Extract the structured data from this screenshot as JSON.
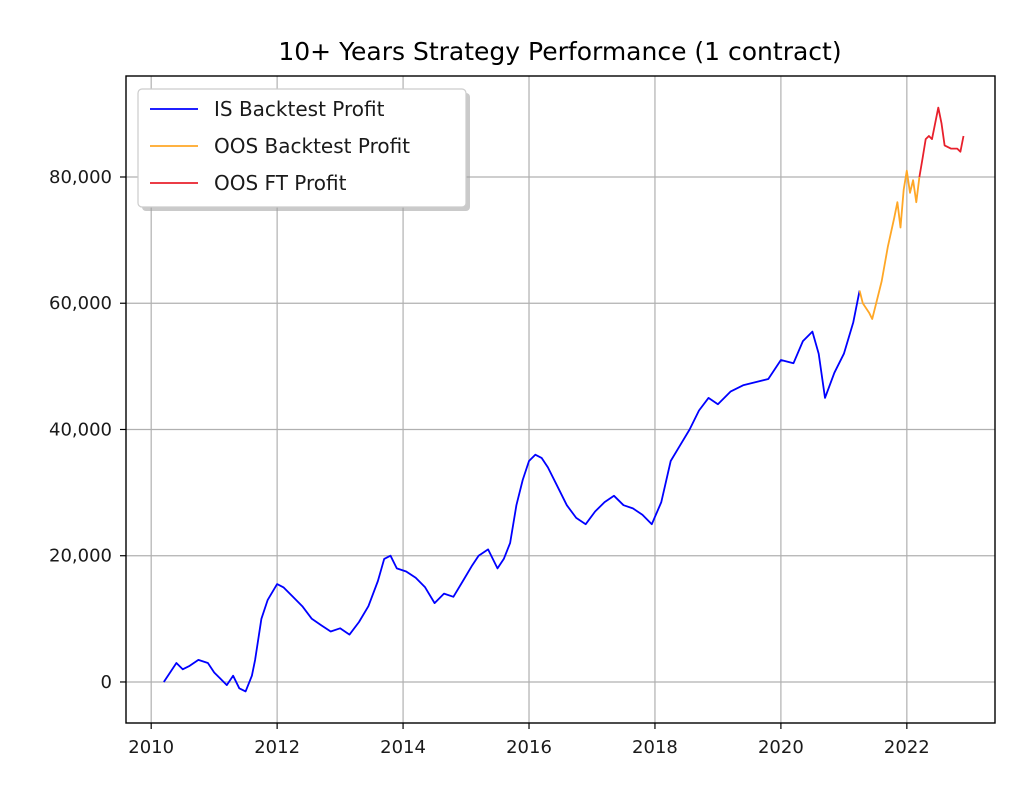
{
  "chart_data": {
    "type": "line",
    "title": "10+ Years Strategy Performance (1 contract)",
    "xlabel": "",
    "ylabel": "",
    "xlim": [
      2009.6,
      2023.4
    ],
    "ylim": [
      -6500,
      96000
    ],
    "x_ticks": [
      2010,
      2012,
      2014,
      2016,
      2018,
      2020,
      2022
    ],
    "x_tick_labels": [
      "2010",
      "2012",
      "2014",
      "2016",
      "2018",
      "2020",
      "2022"
    ],
    "y_ticks": [
      0,
      20000,
      40000,
      60000,
      80000
    ],
    "y_tick_labels": [
      "0",
      "20,000",
      "40,000",
      "60,000",
      "80,000"
    ],
    "grid": true,
    "legend_position": "top-left",
    "series": [
      {
        "name": "IS Backtest Profit",
        "color": "#0000ff",
        "x": [
          2010.2,
          2010.3,
          2010.4,
          2010.5,
          2010.6,
          2010.75,
          2010.9,
          2011.0,
          2011.1,
          2011.2,
          2011.3,
          2011.4,
          2011.5,
          2011.6,
          2011.65,
          2011.75,
          2011.85,
          2012.0,
          2012.1,
          2012.25,
          2012.4,
          2012.55,
          2012.7,
          2012.85,
          2013.0,
          2013.15,
          2013.3,
          2013.45,
          2013.6,
          2013.7,
          2013.8,
          2013.9,
          2014.05,
          2014.2,
          2014.35,
          2014.5,
          2014.65,
          2014.8,
          2014.95,
          2015.1,
          2015.2,
          2015.35,
          2015.5,
          2015.6,
          2015.7,
          2015.8,
          2015.9,
          2016.0,
          2016.1,
          2016.2,
          2016.3,
          2016.45,
          2016.6,
          2016.75,
          2016.9,
          2017.05,
          2017.2,
          2017.35,
          2017.5,
          2017.65,
          2017.8,
          2017.95,
          2018.1,
          2018.25,
          2018.4,
          2018.55,
          2018.7,
          2018.85,
          2019.0,
          2019.2,
          2019.4,
          2019.6,
          2019.8,
          2020.0,
          2020.2,
          2020.35,
          2020.5,
          2020.6,
          2020.7,
          2020.85,
          2021.0,
          2021.15,
          2021.25
        ],
        "y": [
          0,
          1500,
          3000,
          2000,
          2500,
          3500,
          3000,
          1500,
          500,
          -500,
          1000,
          -1000,
          -1500,
          1000,
          3500,
          10000,
          13000,
          15500,
          15000,
          13500,
          12000,
          10000,
          9000,
          8000,
          8500,
          7500,
          9500,
          12000,
          16000,
          19500,
          20000,
          18000,
          17500,
          16500,
          15000,
          12500,
          14000,
          13500,
          16000,
          18500,
          20000,
          21000,
          18000,
          19500,
          22000,
          28000,
          32000,
          35000,
          36000,
          35500,
          34000,
          31000,
          28000,
          26000,
          25000,
          27000,
          28500,
          29500,
          28000,
          27500,
          26500,
          25000,
          28500,
          35000,
          37500,
          40000,
          43000,
          45000,
          44000,
          46000,
          47000,
          47500,
          48000,
          51000,
          50500,
          54000,
          55500,
          52000,
          45000,
          49000,
          52000,
          57000,
          62000
        ]
      },
      {
        "name": "OOS Backtest Profit",
        "color": "#ffa726",
        "x": [
          2021.25,
          2021.3,
          2021.4,
          2021.45,
          2021.5,
          2021.6,
          2021.7,
          2021.8,
          2021.85,
          2021.9,
          2021.95,
          2022.0,
          2022.05,
          2022.1,
          2022.15,
          2022.2
        ],
        "y": [
          62000,
          60000,
          58500,
          57500,
          59500,
          63500,
          69000,
          73500,
          76000,
          72000,
          78000,
          81000,
          77500,
          79500,
          76000,
          80000
        ]
      },
      {
        "name": "OOS FT Profit",
        "color": "#e8202c",
        "x": [
          2022.2,
          2022.25,
          2022.3,
          2022.35,
          2022.4,
          2022.5,
          2022.55,
          2022.6,
          2022.7,
          2022.8,
          2022.85,
          2022.9
        ],
        "y": [
          80000,
          83000,
          86000,
          86500,
          86000,
          91000,
          88500,
          85000,
          84500,
          84500,
          84000,
          86500
        ]
      }
    ]
  }
}
